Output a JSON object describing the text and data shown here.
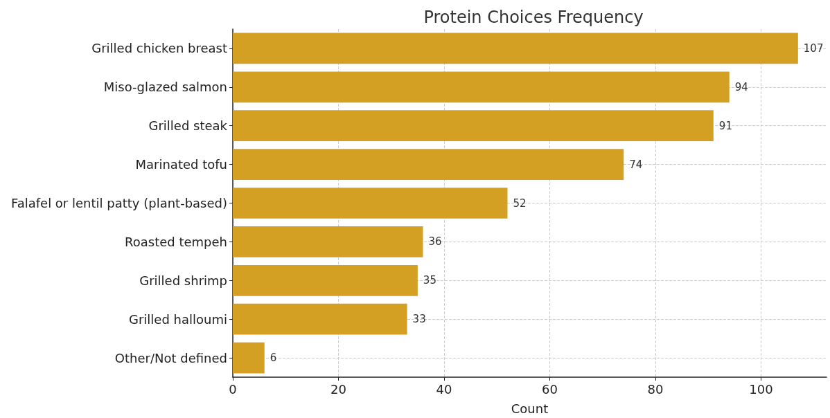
{
  "chart_data": {
    "type": "bar",
    "orientation": "horizontal",
    "title": "Protein Choices Frequency",
    "xlabel": "Count",
    "categories": [
      "Grilled chicken breast",
      "Miso-glazed salmon",
      "Grilled steak",
      "Marinated tofu",
      "Falafel or lentil patty (plant-based)",
      "Roasted tempeh",
      "Grilled shrimp",
      "Grilled halloumi",
      "Other/Not defined"
    ],
    "values": [
      107,
      94,
      91,
      74,
      52,
      36,
      35,
      33,
      6
    ],
    "color": "#d4a024",
    "xlim": [
      0,
      112.4
    ],
    "xticks": [
      0,
      20,
      40,
      60,
      80,
      100
    ],
    "grid": true,
    "data_labels": true
  }
}
